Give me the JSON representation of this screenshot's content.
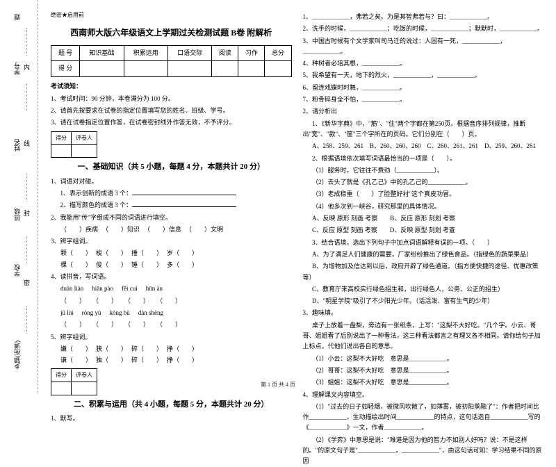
{
  "binding": {
    "labels": [
      "学号",
      "姓名",
      "班级",
      "学校",
      "乡镇(街道)"
    ],
    "chars": [
      "内",
      "线",
      "封",
      "密"
    ],
    "note": "题"
  },
  "header": {
    "secret": "绝密★启用前",
    "title": "西南师大版六年级语文上学期过关检测试题 B卷 附解析"
  },
  "scoreTable": {
    "headers": [
      "题 号",
      "知识基础",
      "积累运用",
      "口语交际",
      "阅读",
      "习作",
      "总分"
    ],
    "scoreLabel": "得 分"
  },
  "notice": {
    "title": "考试须知：",
    "items": [
      "1、考试时间：90 分钟，本卷满分为 100 分。",
      "2、请首先按要求在试卷的指定位置填写您的姓名、班级、学号。",
      "3、请在试卷指定位置作答，在试卷密封线外作答无效，不予评分。"
    ]
  },
  "sectionA": {
    "tableLabels": [
      "得分",
      "评卷人"
    ],
    "title": "一、基础知识（共 5 小题，每题 4 分，本题共计 20 分）",
    "q1": {
      "stem": "1、词语对对碰。",
      "sub1": "1、表示创新的成语 3 个：",
      "sub2": "2、描写颜色的成语 3 个："
    },
    "q2": {
      "stem": "2、我能用\"传\"字组成不同的词语进行填空。",
      "items": [
        "（　　）疾病",
        "（　　）知识",
        "（　　）信息",
        "（　　）文明"
      ]
    },
    "q3": {
      "stem": "3、辨字组词。",
      "row1": [
        "颗（　　）",
        "梭（　　）",
        "捶（　　）",
        "岁（　　）"
      ],
      "row2": [
        "棵（　　）",
        "俊（　　）",
        "锤（　　）",
        "多（　　）"
      ]
    },
    "q4": {
      "stem": "4、读拼音，写词语。",
      "pin1": [
        "duàn liàn",
        "biān pào",
        "fěi cuì",
        "hūn àn"
      ],
      "pin2": [
        "jǔ liú",
        "róng yù",
        "kōng bù",
        "dàn shēng"
      ]
    },
    "q5": {
      "stem": "5、辨字组词。",
      "row1": [
        "嫌（　　）",
        "狭（　　）",
        "碎（　　）",
        "挣（　　）"
      ],
      "row2": [
        "谦（　　）",
        "独（　　）",
        "碎（　　）",
        "挣（　　）"
      ]
    }
  },
  "sectionB": {
    "tableLabels": [
      "得分",
      "评卷人"
    ],
    "title": "二、积累与运用（共 4 小题，每题 5 分，本题共计 20 分）",
    "q1": "1、默写。"
  },
  "rightCol": {
    "lines": [
      "1、____________，弗若之矣。为是其智弗若与？曰：____________。",
      "2、洗手的时候，____________；吃饭的时候，____________；默默时，____________。",
      "3、中国古时候有个文学家叫司马迁的说过：人固有一死，____________，____________。",
      "4、种树者必培其根，____________。",
      "5、我希望有一天，地下的烈火，____________，____________。",
      "6、留连戏蝶时时舞，____________。",
      "7、粉骨碎身全不怕，____________。"
    ],
    "q2": {
      "stem": "2、请分析出",
      "sub": "1、《新华字典》中，\"筋\"、\"住\"两个字都在第250页。根据音序排列规律，推断出\"宽\"、\"款\"、\"筐\"三个字所在的页码。它们分别在（　　）页。",
      "options": "A、258、259、261　B、260、260、260　C、260、261、261　D、259、260、261",
      "sub2": "2、根据语境依次填写词语最恰当的一项是（　　）。",
      "items": [
        "（1）服务时，它往往不费劲（____________）。",
        "（2）去头了就是《孔乙己》中的孔乙己的____________。",
        "（3）老成稳重（　　）了脸整好衬\"这个真皮功冒。",
        "（4）他多次到一峡谷，研究那里的具体情况。"
      ],
      "opts": [
        "A、反映  原形  刻画  考察　　B、反应  原形  刻划  考察",
        "C、反应  原型  刻画  考察　　D、反映  原型  刻划  考查"
      ],
      "sub3": "3、结合语境，选出下列句子中加点词语解释有误的一项。（　　）",
      "sub3items": [
        "A、为了满足人们健康的需要，厂家纷纷推出了绿色食品。（指绿色的蔬菜果品）",
        "B、为增物加及信达到以后，政府开辟了绿色通道。（指方便快捷的途径、优惠改策等）",
        "C、教育厅来高校实行绿色招生和，出行绿色人，公务、公正的招生）",
        "D、\"明星学院\"吸引了不少阳光少年。（话活泼、富有生气的少年）"
      ]
    },
    "q3": {
      "stem": "3、趣味填。",
      "body": "桌子上放着一盘梨，旁边有一张纸条，上写：\"这梨不大好吃。\"几个字。小云、哥哥、姐姐看了后别说出了一种看法，这三种看法都言之有理又各不相同。请你给句子加上标点，代他们说出各自的意思。",
      "items": [
        "（1）小云：这梨不大好吃　意思是____________。",
        "（2）哥哥：这梨不大好吃　意思是____________。",
        "（3）姐姐：这梨不大好吃　意思是____________。"
      ]
    },
    "q4": {
      "stem": "4、理解课文内容填空。",
      "items": [
        "（1）\"过去的日子如轻烟，被微风吹散了，如薄雾，被初阳蒸融了\"：作者把时间比作____________，生动描绘出时间____________的特点，这句话选自____________写的《____________》一文，作者____________。",
        "（2）《学弈》中意思是说：\"难道是因为他的智力不如别人好吗？说：不是这样的。\"的原文句子是\"____________，____________\"，由这句话可知：学习结果不同的原因"
      ]
    }
  },
  "footer": "第 1 页 共 4 页"
}
